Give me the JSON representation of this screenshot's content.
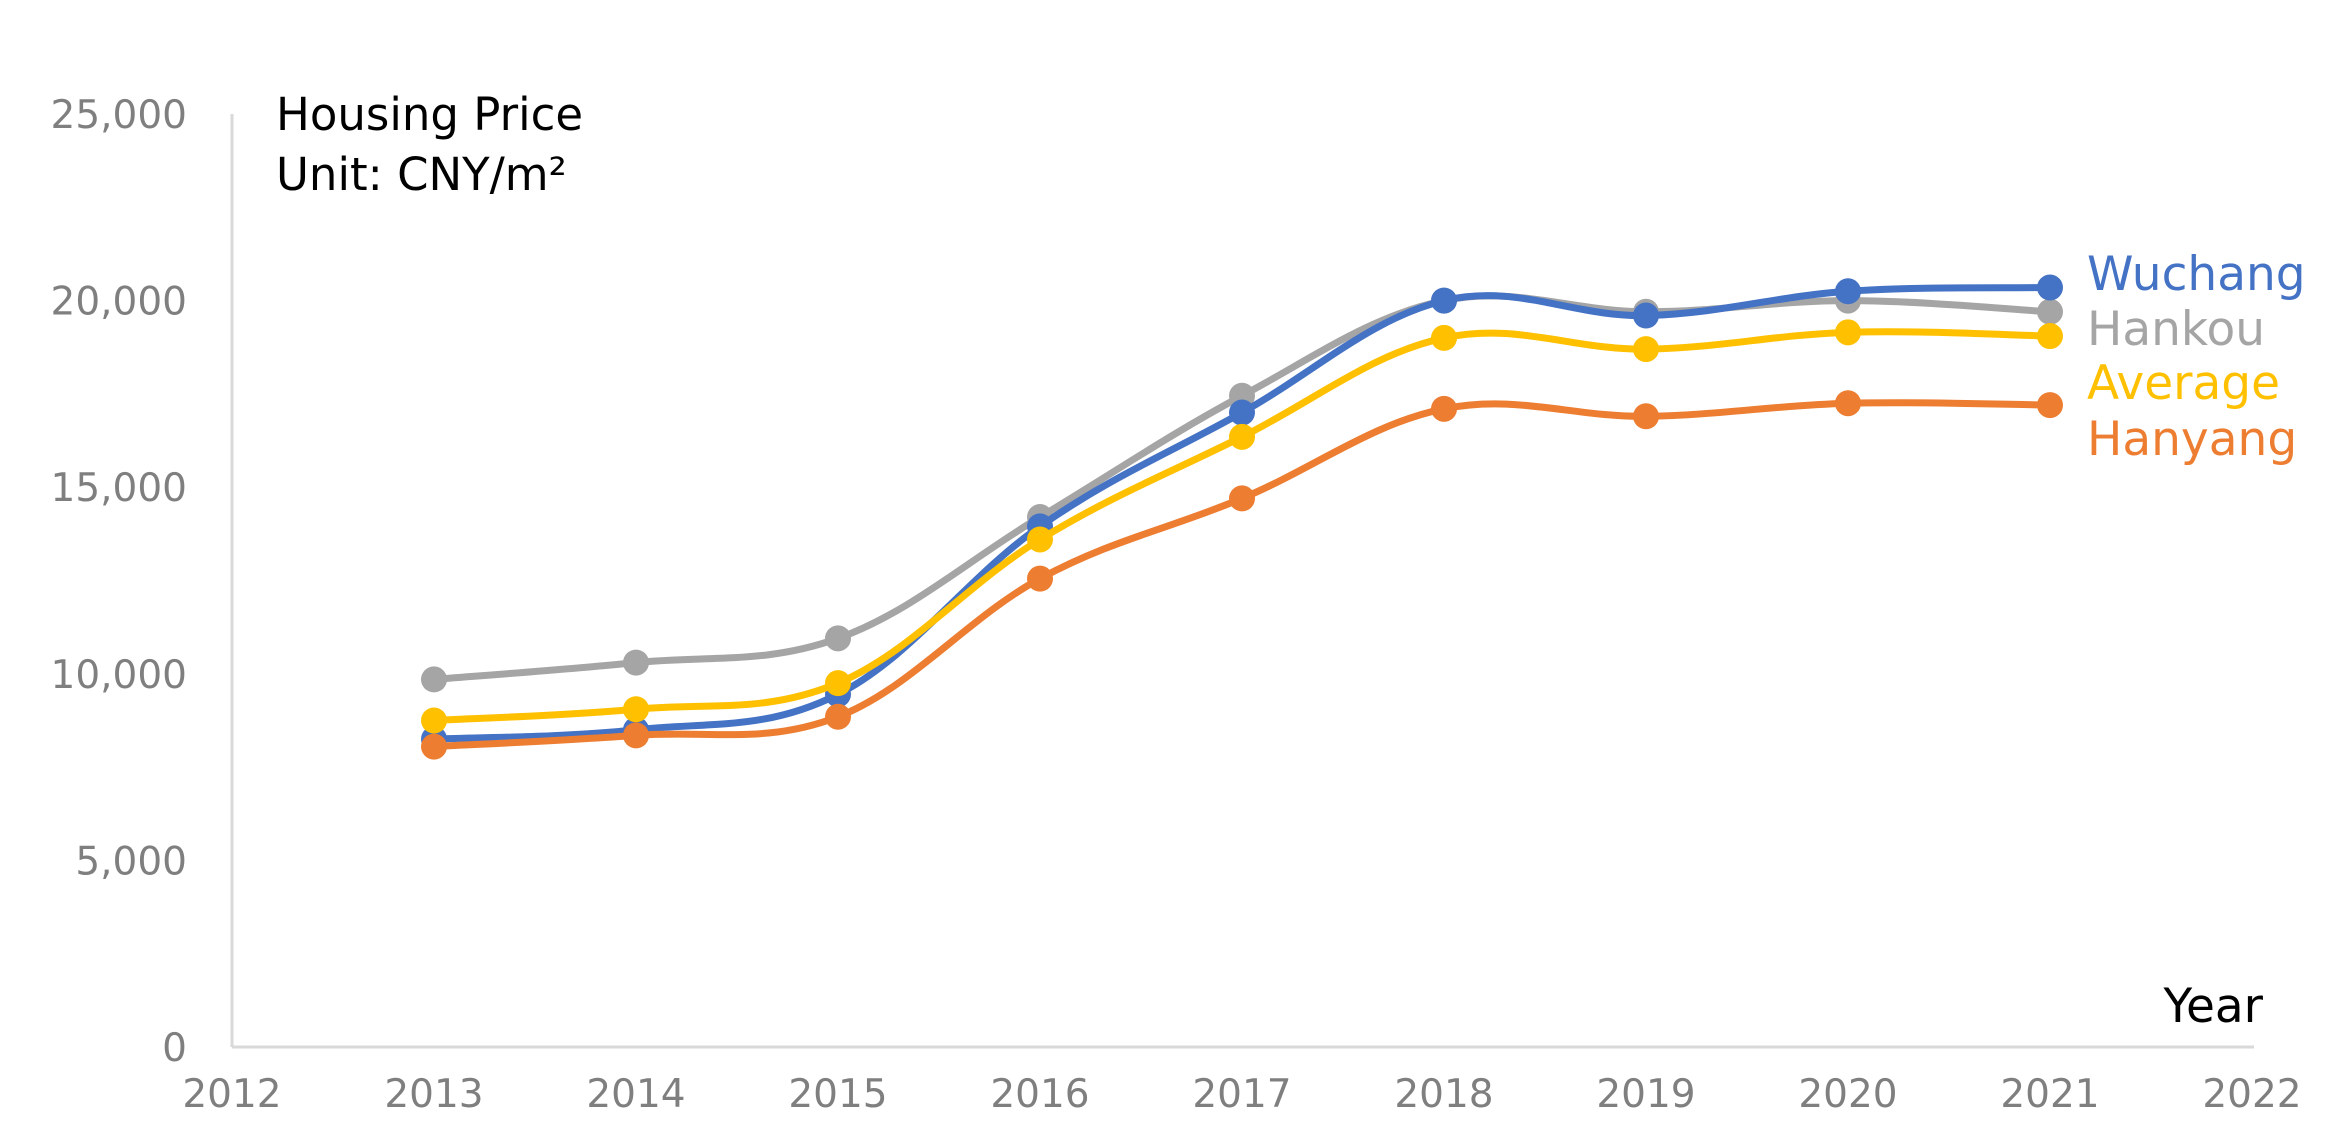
{
  "chart_data": {
    "type": "line",
    "title_line1": "Housing Price",
    "title_line2": "Unit:  CNY/m²",
    "xlabel": "Year",
    "ylabel": "",
    "xlim": [
      2012,
      2022
    ],
    "ylim": [
      0,
      25000
    ],
    "x_ticks": [
      "2012",
      "2013",
      "2014",
      "2015",
      "2016",
      "2017",
      "2018",
      "2019",
      "2020",
      "2021",
      "2022"
    ],
    "y_ticks": [
      "0",
      "5,000",
      "10,000",
      "15,000",
      "20,000",
      "25,000"
    ],
    "x": [
      2013,
      2014,
      2015,
      2016,
      2017,
      2018,
      2019,
      2020,
      2021
    ],
    "series": [
      {
        "name": "Hankou",
        "color": "#a5a5a5",
        "values": [
          9850,
          10300,
          10950,
          14200,
          17450,
          20000,
          19700,
          20000,
          19700
        ]
      },
      {
        "name": "Wuchang",
        "color": "#4472c4",
        "values": [
          8250,
          8500,
          9450,
          13950,
          17000,
          20000,
          19600,
          20250,
          20350
        ]
      },
      {
        "name": "Average",
        "color": "#ffc000",
        "values": [
          8750,
          9050,
          9750,
          13600,
          16350,
          19000,
          18700,
          19150,
          19050
        ]
      },
      {
        "name": "Hanyang",
        "color": "#ed7d31",
        "values": [
          8050,
          8350,
          8850,
          12550,
          14700,
          17100,
          16900,
          17250,
          17200
        ]
      }
    ],
    "legend": [
      {
        "name": "Wuchang",
        "color": "#4472c4"
      },
      {
        "name": "Hankou",
        "color": "#a5a5a5"
      },
      {
        "name": "Average",
        "color": "#ffc000"
      },
      {
        "name": "Hanyang",
        "color": "#ed7d31"
      }
    ],
    "legend_position": "right"
  }
}
